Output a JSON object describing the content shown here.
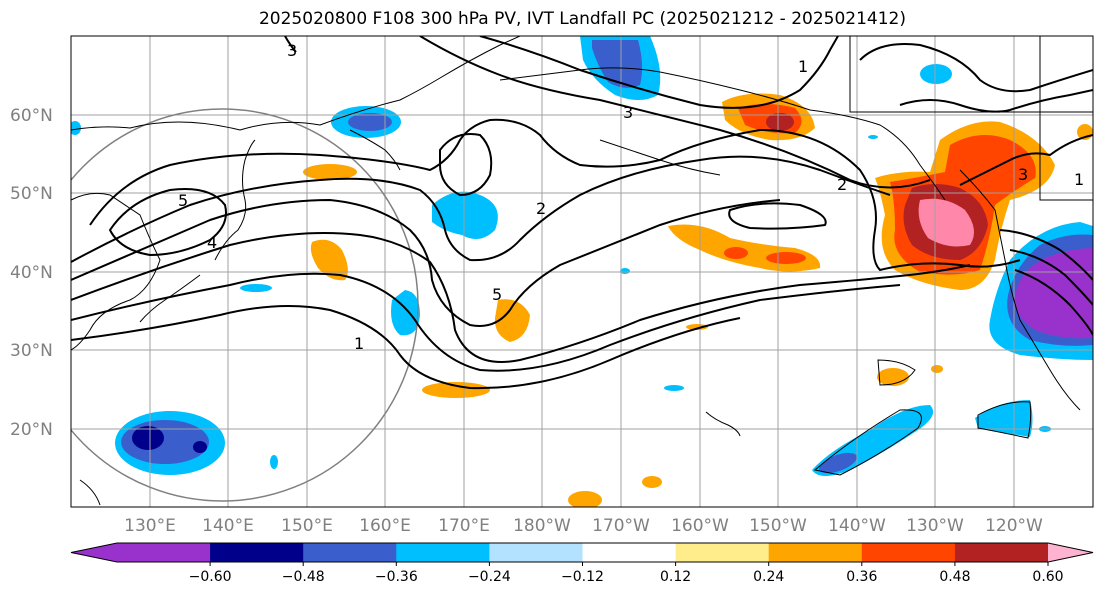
{
  "title": "2025020800 F108 300 hPa PV, IVT Landfall PC (2025021212 - 2025021412)",
  "lat_labels": [
    "60°N",
    "50°N",
    "40°N",
    "30°N",
    "20°N"
  ],
  "lon_labels": [
    "130°E",
    "140°E",
    "150°E",
    "160°E",
    "170°E",
    "180°W",
    "170°W",
    "160°W",
    "150°W",
    "140°W",
    "130°W",
    "120°W"
  ],
  "colorbar": {
    "ticks": [
      "−0.60",
      "−0.48",
      "−0.36",
      "−0.24",
      "−0.12",
      "0.12",
      "0.24",
      "0.36",
      "0.48",
      "0.60"
    ],
    "colors": [
      "#9932cc",
      "#00008b",
      "#3a5fcd",
      "#00bfff",
      "#b2e2ff",
      "#ffffff",
      "#ffec8b",
      "#ffa500",
      "#ff4500",
      "#b22222",
      "#ff88aa",
      "#ffb3d0"
    ]
  },
  "contour_labels": [
    "1",
    "2",
    "3",
    "4",
    "5"
  ]
}
